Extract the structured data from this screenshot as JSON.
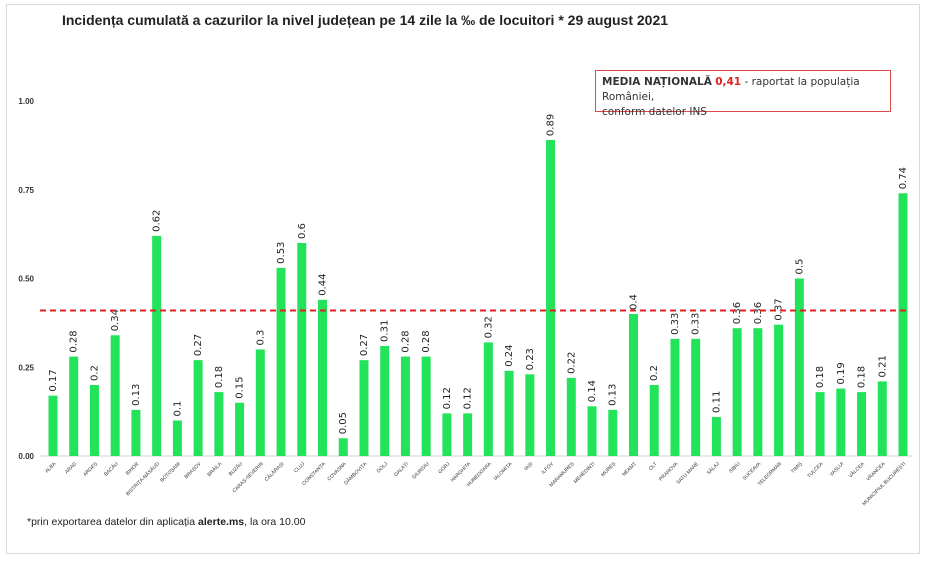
{
  "chart_data": {
    "type": "bar",
    "title": "Incidența cumulată a cazurilor la nivel județean pe 14 zile la ‰ de locuitori * 29 august 2021",
    "xlabel": "",
    "ylabel": "",
    "ylim": [
      0,
      1
    ],
    "yticks": [
      "0.00",
      "0.25",
      "0.50",
      "0.75",
      "1.00"
    ],
    "ytick_values": [
      0,
      0.25,
      0.5,
      0.75,
      1
    ],
    "grid": false,
    "categories": [
      "ALBA",
      "ARAD",
      "ARGEȘ",
      "BACĂU",
      "BIHOR",
      "BISTRIȚA-NĂSĂUD",
      "BOTOȘANI",
      "BRAȘOV",
      "BRĂILA",
      "BUZĂU",
      "CARAȘ-SEVERIN",
      "CĂLĂRAȘI",
      "CLUJ",
      "CONSTANȚA",
      "COVASNA",
      "DÂMBOVIȚA",
      "DOLJ",
      "GALAȚI",
      "GIURGIU",
      "GORJ",
      "HARGHITA",
      "HUNEDOARA",
      "IALOMIȚA",
      "IAȘI",
      "ILFOV",
      "MARAMUREȘ",
      "MEHEDINȚI",
      "MUREȘ",
      "NEAMȚ",
      "OLT",
      "PRAHOVA",
      "SATU MARE",
      "SĂLAJ",
      "SIBIU",
      "SUCEAVA",
      "TELEORMAN",
      "TIMIȘ",
      "TULCEA",
      "VASLUI",
      "VÂLCEA",
      "VRANCEA",
      "MUNICIPIUL BUCUREȘTI"
    ],
    "values": [
      0.17,
      0.28,
      0.2,
      0.34,
      0.13,
      0.62,
      0.1,
      0.27,
      0.18,
      0.15,
      0.3,
      0.53,
      0.6,
      0.44,
      0.05,
      0.27,
      0.31,
      0.28,
      0.28,
      0.12,
      0.12,
      0.32,
      0.24,
      0.23,
      0.89,
      0.22,
      0.14,
      0.13,
      0.4,
      0.2,
      0.33,
      0.33,
      0.11,
      0.36,
      0.36,
      0.37,
      0.5,
      0.18,
      0.19,
      0.18,
      0.21,
      0.74
    ],
    "reference_line": {
      "value": 0.41,
      "style": "dashed",
      "color": "#e02020"
    },
    "bar_color": "#22e35a",
    "annotation": {
      "bold": "MEDIA NAȚIONALĂ",
      "value": "0,41",
      "rest": " - raportat la populația României,",
      "line2": "conform datelor INS"
    }
  },
  "footnote": {
    "prefix": "*prin exportarea datelor din aplicația ",
    "bold": "alerte.ms",
    "suffix": ", la ora 10.00"
  }
}
